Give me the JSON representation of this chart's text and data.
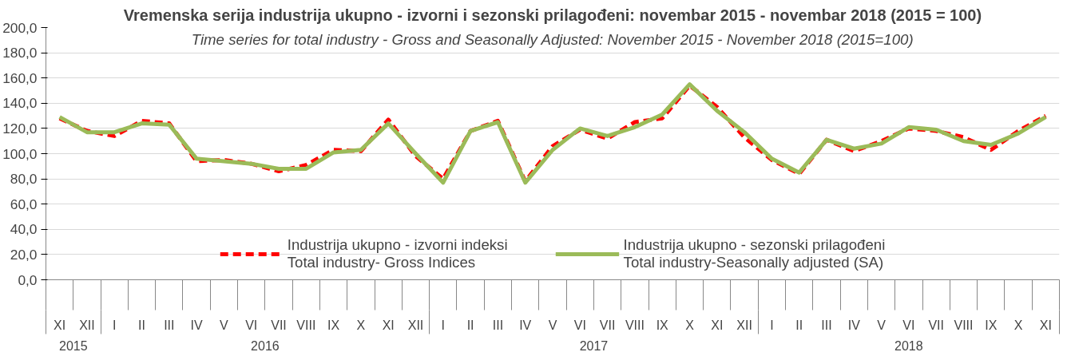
{
  "chart_data": {
    "type": "line",
    "title": "Vremenska serija industrija ukupno - izvorni i sezonski prilagođeni: novembar 2015 - novembar 2018 (2015 = 100)",
    "subtitle": "Time series for total industry - Gross and Seasonally Adjusted: November 2015 - November 2018 (2015=100)",
    "categories": [
      "XI",
      "XII",
      "I",
      "II",
      "III",
      "IV",
      "V",
      "VI",
      "VII",
      "VIII",
      "IX",
      "X",
      "XI",
      "XII",
      "I",
      "II",
      "III",
      "IV",
      "V",
      "VI",
      "VII",
      "VIII",
      "IX",
      "X",
      "XI",
      "XII",
      "I",
      "II",
      "III",
      "IV",
      "V",
      "VI",
      "VII",
      "VIII",
      "IX",
      "X",
      "XI"
    ],
    "series": [
      {
        "name": "Industrija ukupno - izvorni indeksi\nTotal industry- Gross Indices",
        "color": "#ff0000",
        "line_style": "dashed",
        "values": [
          128,
          118,
          114,
          126,
          124,
          94,
          95,
          92,
          86,
          91,
          103,
          102,
          127,
          98,
          80,
          118,
          126,
          78,
          106,
          119,
          112,
          125,
          128,
          154,
          137,
          113,
          95,
          84,
          111,
          102,
          110,
          120,
          118,
          113,
          103,
          118,
          130
        ]
      },
      {
        "name": "Industrija ukupno - sezonski prilagođeni\nTotal industry-Seasonally adjusted (SA)",
        "color": "#9bbb59",
        "line_style": "solid",
        "values": [
          129,
          117,
          117,
          124,
          123,
          96,
          94,
          92,
          88,
          88,
          101,
          103,
          124,
          100,
          77,
          118,
          125,
          77,
          103,
          120,
          114,
          121,
          131,
          155,
          134,
          117,
          96,
          85,
          111,
          104,
          108,
          121,
          119,
          110,
          107,
          116,
          129
        ]
      }
    ],
    "ylim": [
      0,
      200
    ],
    "yticks": [
      {
        "value": 0,
        "label": "0,0"
      },
      {
        "value": 20,
        "label": "20,0"
      },
      {
        "value": 40,
        "label": "40,0"
      },
      {
        "value": 60,
        "label": "60,0"
      },
      {
        "value": 80,
        "label": "80,0"
      },
      {
        "value": 100,
        "label": "100,0"
      },
      {
        "value": 120,
        "label": "120,0"
      },
      {
        "value": 140,
        "label": "140,0"
      },
      {
        "value": 160,
        "label": "160,0"
      },
      {
        "value": 180,
        "label": "180,0"
      },
      {
        "value": 200,
        "label": "200,0"
      }
    ],
    "grid": "y",
    "legend": "bottom",
    "marker": "none",
    "annotations": [
      "2015",
      "2016",
      "2017",
      "2018"
    ]
  }
}
